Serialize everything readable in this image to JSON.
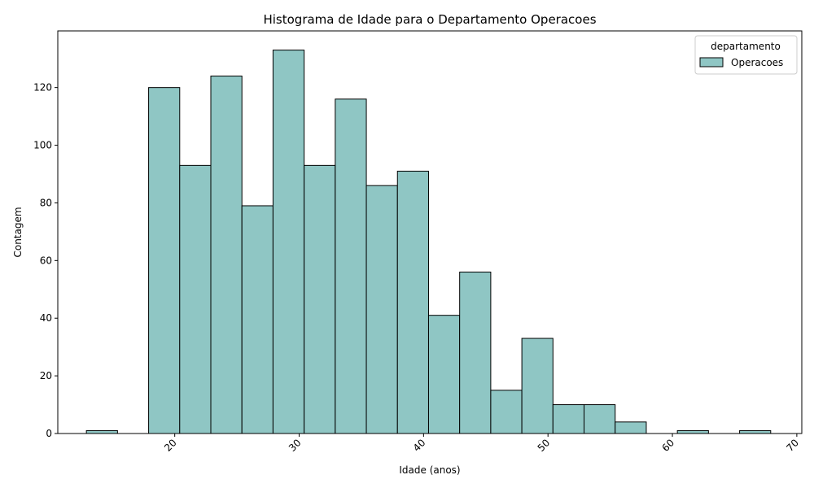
{
  "chart_data": {
    "type": "bar",
    "title": "Histograma de Idade para o Departamento Operacoes",
    "xlabel": "Idade (anos)",
    "ylabel": "Contagem",
    "bin_edges": [
      12.9,
      15.4,
      17.9,
      20.4,
      22.9,
      25.4,
      27.9,
      30.4,
      32.9,
      35.4,
      37.9,
      40.4,
      42.9,
      45.4,
      47.9,
      50.4,
      52.9,
      55.4,
      57.9,
      60.4,
      62.9,
      65.4,
      67.9
    ],
    "values": [
      1,
      0,
      120,
      93,
      124,
      79,
      133,
      93,
      116,
      86,
      91,
      41,
      56,
      15,
      33,
      10,
      10,
      4,
      0,
      1,
      0,
      1
    ],
    "xlim": [
      10.6,
      70.4
    ],
    "ylim": [
      0,
      139.65
    ],
    "x_ticks": [
      20,
      30,
      40,
      50,
      60,
      70
    ],
    "y_ticks": [
      0,
      20,
      40,
      60,
      80,
      100,
      120
    ],
    "x_tick_rotation": "45 degrees",
    "grid": false,
    "bar_color": "#8fc6c4",
    "edge_color": "#000000",
    "legend": {
      "title": "departamento",
      "entries": [
        "Operacoes"
      ],
      "placement": "top-right"
    }
  }
}
